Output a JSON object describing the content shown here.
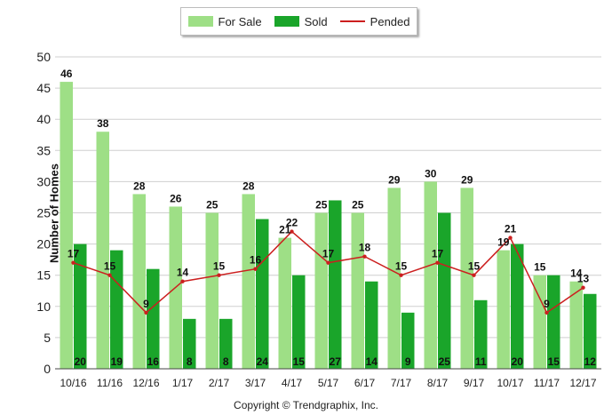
{
  "legend": [
    {
      "label": "For Sale",
      "color": "#9edf86",
      "kind": "bar"
    },
    {
      "label": "Sold",
      "color": "#1aa52a",
      "kind": "bar"
    },
    {
      "label": "Pended",
      "color": "#cc1f1f",
      "kind": "line"
    }
  ],
  "copyright": "Copyright © Trendgraphix, Inc.",
  "chart_data": {
    "type": "bar",
    "ylabel": "Number of Homes",
    "xlabel": "",
    "ylim": [
      0,
      50
    ],
    "yticks": [
      0,
      5,
      10,
      15,
      20,
      25,
      30,
      35,
      40,
      45,
      50
    ],
    "grid": true,
    "legend_position": "top-center",
    "categories": [
      "10/16",
      "11/16",
      "12/16",
      "1/17",
      "2/17",
      "3/17",
      "4/17",
      "5/17",
      "6/17",
      "7/17",
      "8/17",
      "9/17",
      "10/17",
      "11/17",
      "12/17"
    ],
    "series": [
      {
        "name": "For Sale",
        "type": "bar",
        "color": "#9edf86",
        "values": [
          46,
          38,
          28,
          26,
          25,
          28,
          21,
          25,
          25,
          29,
          30,
          29,
          19,
          15,
          14
        ]
      },
      {
        "name": "Sold",
        "type": "bar",
        "color": "#1aa52a",
        "values": [
          20,
          19,
          16,
          8,
          8,
          24,
          15,
          27,
          14,
          9,
          25,
          11,
          20,
          15,
          12
        ]
      },
      {
        "name": "Pended",
        "type": "line",
        "color": "#cc1f1f",
        "values": [
          17,
          15,
          9,
          14,
          15,
          16,
          22,
          17,
          18,
          15,
          17,
          15,
          21,
          9,
          13
        ]
      }
    ]
  }
}
